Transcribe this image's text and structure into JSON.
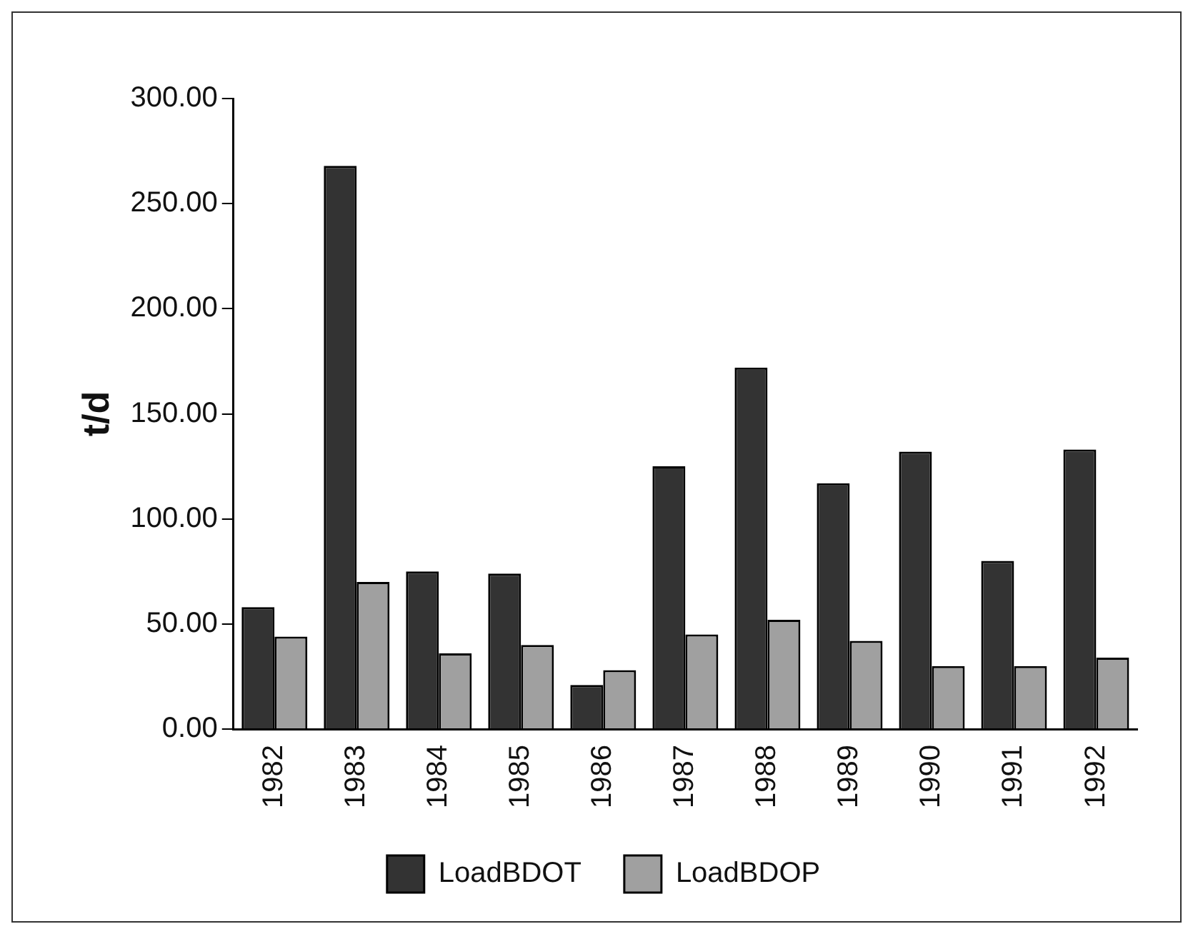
{
  "chart_data": {
    "type": "bar",
    "ylabel": "t/d",
    "categories": [
      "1982",
      "1983",
      "1984",
      "1985",
      "1986",
      "1987",
      "1988",
      "1989",
      "1990",
      "1991",
      "1992"
    ],
    "series": [
      {
        "name": "LoadBDOT",
        "color": "#333333",
        "values": [
          58,
          268,
          75,
          74,
          21,
          125,
          172,
          117,
          132,
          80,
          133
        ]
      },
      {
        "name": "LoadBDOP",
        "color": "#a0a0a0",
        "values": [
          44,
          70,
          36,
          40,
          28,
          45,
          52,
          42,
          30,
          30,
          34
        ]
      }
    ],
    "ylim": [
      0,
      300
    ],
    "yticks": [
      {
        "value": 0,
        "label": "0.00"
      },
      {
        "value": 50,
        "label": "50.00"
      },
      {
        "value": 100,
        "label": "100.00"
      },
      {
        "value": 150,
        "label": "150.00"
      },
      {
        "value": 200,
        "label": "200.00"
      },
      {
        "value": 250,
        "label": "250.00"
      },
      {
        "value": 300,
        "label": "300.00"
      }
    ],
    "grid": false,
    "legend": "bottom"
  }
}
